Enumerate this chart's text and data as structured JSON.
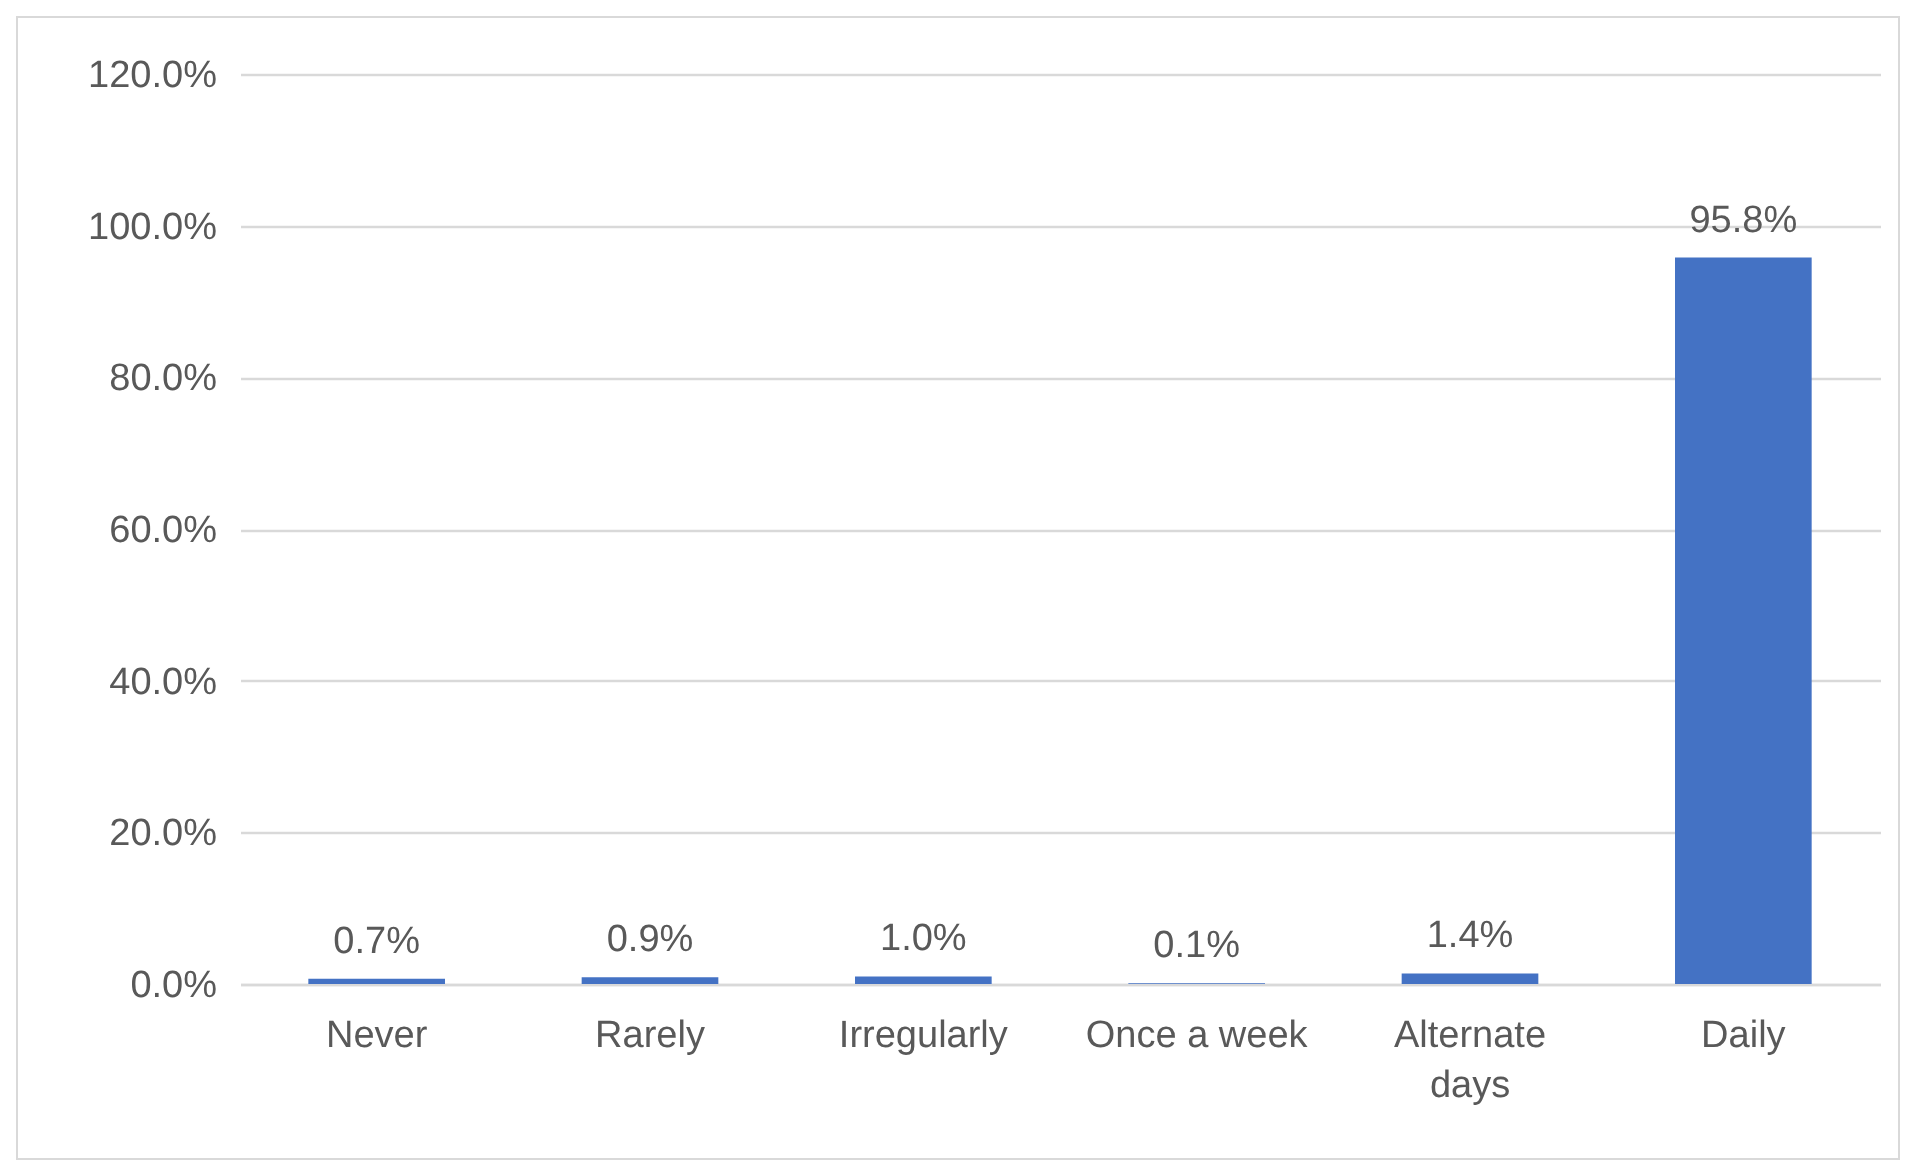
{
  "chart_data": {
    "type": "bar",
    "categories": [
      "Never",
      "Rarely",
      "Irregularly",
      "Once a week",
      "Alternate days",
      "Daily"
    ],
    "values": [
      0.7,
      0.9,
      1.0,
      0.1,
      1.4,
      95.8
    ],
    "value_labels": [
      "0.7%",
      "0.9%",
      "1.0%",
      "0.1%",
      "1.4%",
      "95.8%"
    ],
    "color": "#4472c4",
    "ylim": [
      0,
      120
    ],
    "yticks": [
      {
        "value": 0,
        "label": "0.0%"
      },
      {
        "value": 20,
        "label": "20.0%"
      },
      {
        "value": 40,
        "label": "40.0%"
      },
      {
        "value": 60,
        "label": "60.0%"
      },
      {
        "value": 80,
        "label": "80.0%"
      },
      {
        "value": 100,
        "label": "100.0%"
      },
      {
        "value": 120,
        "label": "120.0%"
      }
    ],
    "grid": "y"
  }
}
